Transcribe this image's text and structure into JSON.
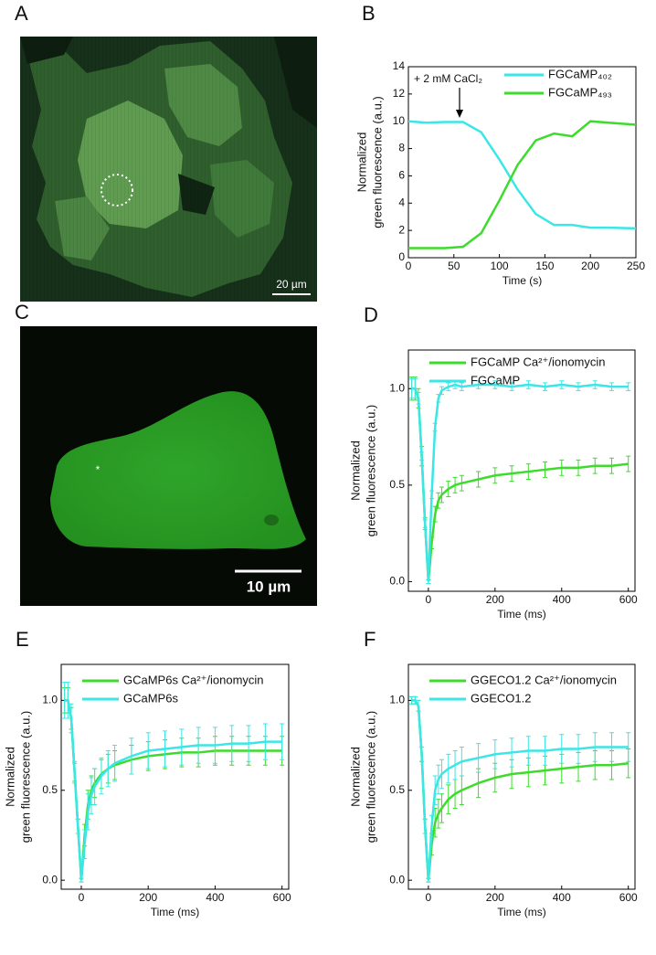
{
  "images": [
    {
      "panel": "A",
      "scale_bar": "20 µm"
    },
    {
      "panel": "C",
      "scale_bar": "10 µm",
      "marker": "*"
    }
  ],
  "chart_data": [
    {
      "type": "line",
      "panel": "B",
      "ylabel": [
        "Normalized",
        "green fluorescence (a.u.)"
      ],
      "xlabel": "Time (s)",
      "annotation": "+ 2 mM CaCl₂",
      "x": [
        0,
        20,
        40,
        60,
        80,
        100,
        120,
        140,
        160,
        180,
        200,
        220,
        250
      ],
      "series": [
        {
          "name": "FGCaMP₄₀₂",
          "color": "#3ae6e6",
          "values": [
            10,
            9.9,
            9.95,
            9.95,
            9.2,
            7.2,
            5,
            3.2,
            2.4,
            2.4,
            2.2,
            2.2,
            2.15
          ]
        },
        {
          "name": "FGCaMP₄₉₃",
          "color": "#3ddc2c",
          "values": [
            0.7,
            0.7,
            0.7,
            0.8,
            1.8,
            4.2,
            6.8,
            8.6,
            9.1,
            8.9,
            10,
            9.9,
            9.75
          ]
        }
      ],
      "xlim": [
        0,
        250
      ],
      "ylim": [
        0,
        14
      ],
      "xticks": [
        0,
        50,
        100,
        150,
        200,
        250
      ],
      "yticks": [
        0,
        2,
        4,
        6,
        8,
        10,
        12,
        14
      ]
    },
    {
      "type": "line",
      "panel": "D",
      "ylabel": [
        "Normalized",
        "green fluorescence (a.u.)"
      ],
      "xlabel": "Time (ms)",
      "x": [
        -50,
        -40,
        -30,
        -20,
        -10,
        0,
        10,
        20,
        30,
        40,
        60,
        80,
        100,
        150,
        200,
        250,
        300,
        350,
        400,
        450,
        500,
        550,
        600
      ],
      "series": [
        {
          "name": "FGCaMP Ca²⁺/ionomycin",
          "color": "#3ddc2c",
          "values": [
            1.0,
            1.0,
            0.95,
            0.65,
            0.3,
            0.0,
            0.2,
            0.35,
            0.42,
            0.45,
            0.48,
            0.5,
            0.51,
            0.53,
            0.55,
            0.56,
            0.57,
            0.58,
            0.59,
            0.59,
            0.6,
            0.6,
            0.61
          ],
          "errors": [
            0.06,
            0.06,
            0.05,
            0.05,
            0.03,
            0.01,
            0.03,
            0.04,
            0.04,
            0.04,
            0.04,
            0.04,
            0.04,
            0.04,
            0.04,
            0.04,
            0.04,
            0.04,
            0.04,
            0.04,
            0.04,
            0.04,
            0.04
          ]
        },
        {
          "name": "FGCaMP",
          "color": "#3ae6e6",
          "values": [
            1.0,
            1.0,
            0.95,
            0.65,
            0.3,
            0.0,
            0.45,
            0.8,
            0.95,
            0.99,
            1.01,
            1.02,
            1.01,
            1.02,
            1.02,
            1.01,
            1.02,
            1.01,
            1.02,
            1.01,
            1.02,
            1.01,
            1.01
          ],
          "errors": [
            0.05,
            0.05,
            0.03,
            0.02,
            0.02,
            0.01,
            0.02,
            0.02,
            0.02,
            0.02,
            0.02,
            0.02,
            0.02,
            0.02,
            0.02,
            0.02,
            0.02,
            0.02,
            0.02,
            0.02,
            0.02,
            0.02,
            0.02
          ]
        }
      ],
      "xlim": [
        -60,
        620
      ],
      "ylim": [
        -0.05,
        1.2
      ],
      "xticks": [
        0,
        200,
        400,
        600
      ],
      "yticks": [
        {
          "value": 0,
          "label": "0.0"
        },
        {
          "value": 0.5,
          "label": "0.5"
        },
        {
          "value": 1,
          "label": "1.0"
        }
      ]
    },
    {
      "type": "line",
      "panel": "E",
      "ylabel": [
        "Normalized",
        "green fluorescence (a.u.)"
      ],
      "xlabel": "Time (ms)",
      "x": [
        -50,
        -40,
        -30,
        -20,
        -10,
        0,
        10,
        20,
        30,
        40,
        60,
        80,
        100,
        150,
        200,
        250,
        300,
        350,
        400,
        450,
        500,
        550,
        600
      ],
      "series": [
        {
          "name": "GCaMP6s Ca²⁺/ionomycin",
          "color": "#3ddc2c",
          "values": [
            1.0,
            1.0,
            0.9,
            0.6,
            0.3,
            0.0,
            0.25,
            0.42,
            0.5,
            0.54,
            0.59,
            0.62,
            0.64,
            0.67,
            0.69,
            0.7,
            0.71,
            0.71,
            0.72,
            0.72,
            0.72,
            0.72,
            0.72
          ],
          "errors": [
            0.07,
            0.07,
            0.06,
            0.05,
            0.04,
            0.01,
            0.06,
            0.08,
            0.08,
            0.08,
            0.08,
            0.08,
            0.08,
            0.08,
            0.08,
            0.08,
            0.08,
            0.08,
            0.08,
            0.08,
            0.08,
            0.08,
            0.08
          ]
        },
        {
          "name": "GCaMP6s",
          "color": "#3ae6e6",
          "values": [
            1.0,
            1.0,
            0.9,
            0.6,
            0.3,
            0.0,
            0.2,
            0.38,
            0.47,
            0.52,
            0.58,
            0.62,
            0.65,
            0.69,
            0.72,
            0.73,
            0.74,
            0.75,
            0.75,
            0.76,
            0.76,
            0.77,
            0.77
          ],
          "errors": [
            0.1,
            0.1,
            0.08,
            0.06,
            0.04,
            0.01,
            0.08,
            0.1,
            0.1,
            0.1,
            0.1,
            0.1,
            0.1,
            0.1,
            0.1,
            0.1,
            0.1,
            0.1,
            0.1,
            0.1,
            0.1,
            0.1,
            0.1
          ]
        }
      ],
      "xlim": [
        -60,
        620
      ],
      "ylim": [
        -0.05,
        1.2
      ],
      "xticks": [
        0,
        200,
        400,
        600
      ],
      "yticks": [
        {
          "value": 0,
          "label": "0.0"
        },
        {
          "value": 0.5,
          "label": "0.5"
        },
        {
          "value": 1,
          "label": "1.0"
        }
      ]
    },
    {
      "type": "line",
      "panel": "F",
      "ylabel": [
        "Normalized",
        "green fluorescence (a.u.)"
      ],
      "xlabel": "Time (ms)",
      "x": [
        -50,
        -40,
        -30,
        -20,
        -10,
        0,
        10,
        20,
        30,
        40,
        60,
        80,
        100,
        150,
        200,
        250,
        300,
        350,
        400,
        450,
        500,
        550,
        600
      ],
      "series": [
        {
          "name": "GGECO1.2 Ca²⁺/ionomycin",
          "color": "#3ddc2c",
          "values": [
            1.0,
            1.0,
            0.97,
            0.7,
            0.3,
            0.0,
            0.2,
            0.32,
            0.37,
            0.4,
            0.45,
            0.48,
            0.5,
            0.54,
            0.57,
            0.59,
            0.6,
            0.61,
            0.62,
            0.63,
            0.64,
            0.64,
            0.65
          ],
          "errors": [
            0.02,
            0.02,
            0.03,
            0.04,
            0.04,
            0.01,
            0.06,
            0.08,
            0.08,
            0.08,
            0.08,
            0.08,
            0.08,
            0.08,
            0.08,
            0.08,
            0.08,
            0.08,
            0.08,
            0.08,
            0.08,
            0.08,
            0.08
          ]
        },
        {
          "name": "GGECO1.2",
          "color": "#3ae6e6",
          "values": [
            1.0,
            1.0,
            0.97,
            0.7,
            0.3,
            0.0,
            0.3,
            0.5,
            0.56,
            0.59,
            0.62,
            0.64,
            0.66,
            0.68,
            0.7,
            0.71,
            0.72,
            0.72,
            0.73,
            0.73,
            0.74,
            0.74,
            0.74
          ],
          "errors": [
            0.02,
            0.02,
            0.03,
            0.04,
            0.04,
            0.01,
            0.06,
            0.08,
            0.08,
            0.08,
            0.08,
            0.08,
            0.08,
            0.08,
            0.08,
            0.08,
            0.08,
            0.08,
            0.08,
            0.08,
            0.08,
            0.08,
            0.08
          ]
        }
      ],
      "xlim": [
        -60,
        620
      ],
      "ylim": [
        -0.05,
        1.2
      ],
      "xticks": [
        0,
        200,
        400,
        600
      ],
      "yticks": [
        {
          "value": 0,
          "label": "0.0"
        },
        {
          "value": 0.5,
          "label": "0.5"
        },
        {
          "value": 1,
          "label": "1.0"
        }
      ]
    }
  ]
}
